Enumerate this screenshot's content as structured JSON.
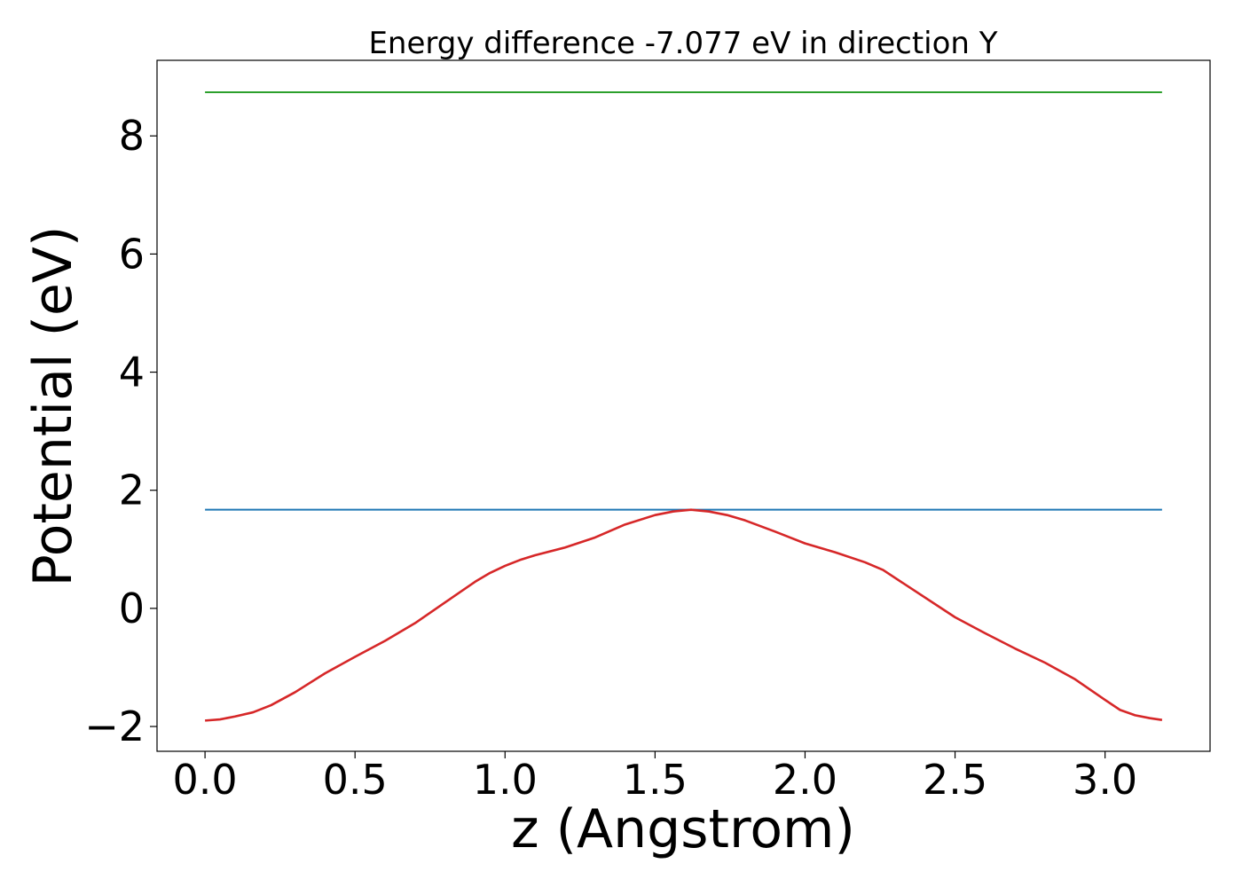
{
  "chart_data": {
    "type": "line",
    "title": "Energy difference -7.077 eV in direction Y",
    "xlabel": "z (Angstrom)",
    "ylabel": "Potential (eV)",
    "xlim": [
      -0.16,
      3.35
    ],
    "ylim": [
      -2.42,
      9.28
    ],
    "xticks": [
      0.0,
      0.5,
      1.0,
      1.5,
      2.0,
      2.5,
      3.0
    ],
    "xtick_labels": [
      "0.0",
      "0.5",
      "1.0",
      "1.5",
      "2.0",
      "2.5",
      "3.0"
    ],
    "yticks": [
      -2,
      0,
      2,
      4,
      6,
      8
    ],
    "ytick_labels": [
      "−2",
      "0",
      "2",
      "4",
      "6",
      "8"
    ],
    "grid": false,
    "series": [
      {
        "color": "#2ca02c",
        "x": [
          0.0,
          3.19
        ],
        "y": [
          8.74,
          8.74
        ]
      },
      {
        "color": "#1f77b4",
        "x": [
          0.0,
          3.19
        ],
        "y": [
          1.67,
          1.67
        ]
      },
      {
        "color": "#d62728",
        "x": [
          0.0,
          0.05,
          0.1,
          0.16,
          0.22,
          0.3,
          0.4,
          0.5,
          0.6,
          0.7,
          0.8,
          0.9,
          0.95,
          1.0,
          1.05,
          1.1,
          1.2,
          1.3,
          1.4,
          1.5,
          1.56,
          1.62,
          1.68,
          1.74,
          1.8,
          1.9,
          2.0,
          2.1,
          2.2,
          2.26,
          2.35,
          2.5,
          2.6,
          2.7,
          2.8,
          2.9,
          3.0,
          3.05,
          3.1,
          3.15,
          3.19
        ],
        "y": [
          -1.9,
          -1.88,
          -1.83,
          -1.76,
          -1.64,
          -1.42,
          -1.1,
          -0.82,
          -0.55,
          -0.25,
          0.1,
          0.45,
          0.6,
          0.72,
          0.82,
          0.9,
          1.03,
          1.2,
          1.42,
          1.58,
          1.64,
          1.67,
          1.64,
          1.58,
          1.49,
          1.3,
          1.1,
          0.95,
          0.78,
          0.65,
          0.35,
          -0.15,
          -0.42,
          -0.68,
          -0.92,
          -1.2,
          -1.55,
          -1.72,
          -1.81,
          -1.86,
          -1.89
        ]
      }
    ]
  }
}
